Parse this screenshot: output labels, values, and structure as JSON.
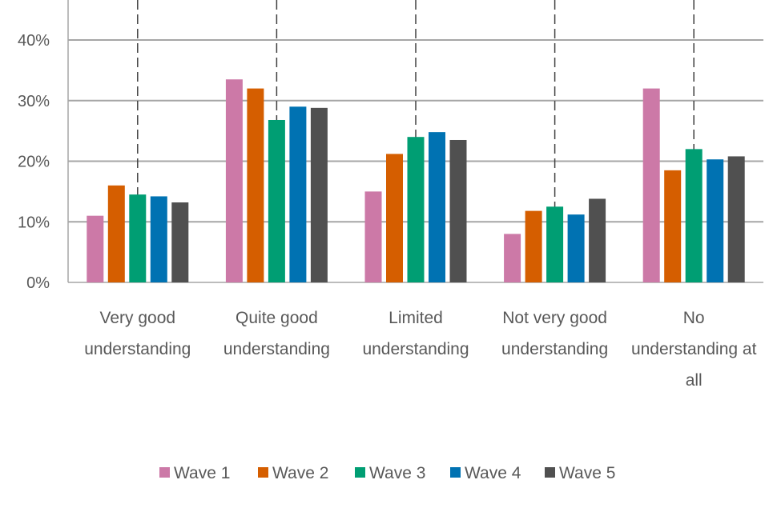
{
  "chart_data": {
    "type": "bar",
    "categories": [
      [
        "Very good",
        "understanding"
      ],
      [
        "Quite good",
        "understanding"
      ],
      [
        "Limited",
        "understanding"
      ],
      [
        "Not very good",
        "understanding"
      ],
      [
        "No",
        "understanding at",
        "all"
      ]
    ],
    "series": [
      {
        "name": "Wave 1",
        "color": "#CC79A7",
        "values": [
          11,
          33.5,
          15,
          8,
          32
        ]
      },
      {
        "name": "Wave 2",
        "color": "#D55E00",
        "values": [
          16,
          32,
          21.2,
          11.8,
          18.5
        ]
      },
      {
        "name": "Wave 3",
        "color": "#009E73",
        "values": [
          14.5,
          26.8,
          24,
          12.5,
          22
        ]
      },
      {
        "name": "Wave 4",
        "color": "#0072B2",
        "values": [
          14.2,
          29,
          24.8,
          11.2,
          20.3
        ]
      },
      {
        "name": "Wave 5",
        "color": "#505050",
        "values": [
          13.2,
          28.8,
          23.5,
          13.8,
          20.8
        ]
      }
    ],
    "ylim": [
      0,
      40
    ],
    "yticks": [
      0,
      10,
      20,
      30,
      40
    ],
    "ytick_labels": [
      "0%",
      "10%",
      "20%",
      "30%",
      "40%"
    ],
    "grid": true,
    "legend": "bottom"
  }
}
